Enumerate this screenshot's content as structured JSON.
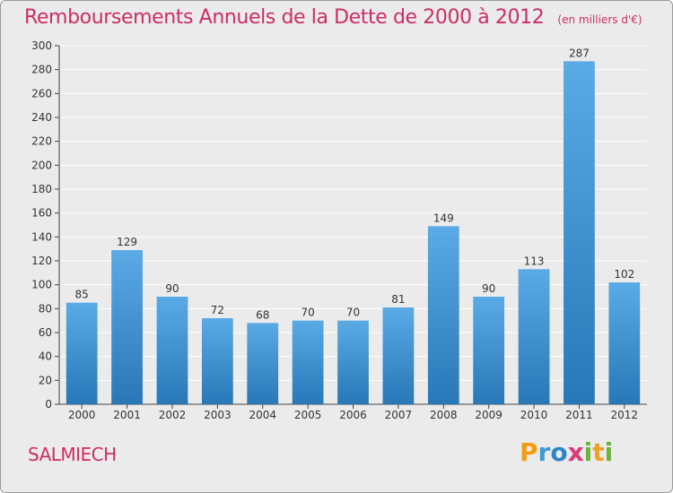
{
  "title": "Remboursements Annuels de la Dette de 2000 à 2012",
  "subtitle": "(en milliers d'€)",
  "place": "SALMIECH",
  "logo": {
    "letters": [
      "P",
      "r",
      "o",
      "x",
      "i",
      "t",
      "i"
    ],
    "colors": [
      "#f39c12",
      "#3a9bd8",
      "#2e86c9",
      "#d93a7a",
      "#6bb33a",
      "#f0a020",
      "#6bb33a"
    ]
  },
  "colors": {
    "title": "#cc2e63",
    "bar_light": "#5aaae6",
    "bar_dark": "#2878b8",
    "background": "#ebebeb",
    "grid": "#ffffff"
  },
  "chart_data": {
    "type": "bar",
    "title": "Remboursements Annuels de la Dette de 2000 à 2012",
    "xlabel": "",
    "ylabel": "",
    "categories": [
      "2000",
      "2001",
      "2002",
      "2003",
      "2004",
      "2005",
      "2006",
      "2007",
      "2008",
      "2009",
      "2010",
      "2011",
      "2012"
    ],
    "values": [
      85,
      129,
      90,
      72,
      68,
      70,
      70,
      81,
      149,
      90,
      113,
      287,
      102
    ],
    "ylim": [
      0,
      300
    ],
    "yticks": [
      0,
      20,
      40,
      60,
      80,
      100,
      120,
      140,
      160,
      180,
      200,
      220,
      240,
      260,
      280,
      300
    ],
    "grid": true
  }
}
